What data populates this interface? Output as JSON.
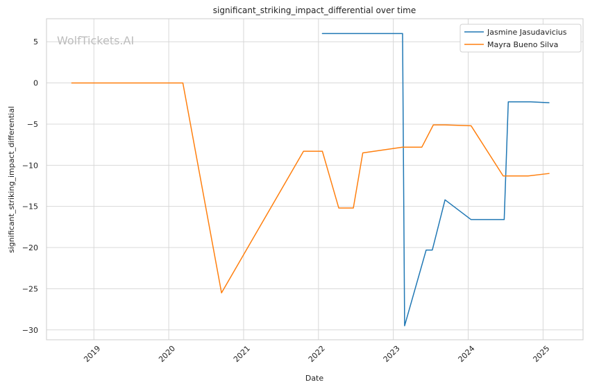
{
  "watermark": "WolfTickets.AI",
  "chart_data": {
    "type": "line",
    "title": "significant_striking_impact_differential over time",
    "xlabel": "Date",
    "ylabel": "significant_striking_impact_differential",
    "xlim": [
      "2018-05-15",
      "2025-07-15"
    ],
    "ylim": [
      -31.2,
      7.8
    ],
    "x_ticks": [
      {
        "label": "2019",
        "date": "2019-01-01"
      },
      {
        "label": "2020",
        "date": "2020-01-01"
      },
      {
        "label": "2021",
        "date": "2021-01-01"
      },
      {
        "label": "2022",
        "date": "2022-01-01"
      },
      {
        "label": "2023",
        "date": "2023-01-01"
      },
      {
        "label": "2024",
        "date": "2024-01-01"
      },
      {
        "label": "2025",
        "date": "2025-01-01"
      }
    ],
    "y_ticks": [
      5,
      0,
      -5,
      -10,
      -15,
      -20,
      -25,
      -30
    ],
    "grid": true,
    "legend_position": "top-right",
    "series": [
      {
        "name": "Jasmine Jasudavicius",
        "color": "#1f77b4",
        "points": [
          {
            "x": "2022-01-20",
            "y": 6.0
          },
          {
            "x": "2023-02-15",
            "y": 6.0
          },
          {
            "x": "2023-02-25",
            "y": -29.5
          },
          {
            "x": "2023-06-10",
            "y": -20.3
          },
          {
            "x": "2023-07-10",
            "y": -20.3
          },
          {
            "x": "2023-09-10",
            "y": -14.2
          },
          {
            "x": "2024-01-15",
            "y": -16.6
          },
          {
            "x": "2024-06-25",
            "y": -16.6
          },
          {
            "x": "2024-07-15",
            "y": -2.3
          },
          {
            "x": "2024-11-01",
            "y": -2.3
          },
          {
            "x": "2025-01-30",
            "y": -2.4
          }
        ]
      },
      {
        "name": "Mayra Bueno Silva",
        "color": "#ff7f0e",
        "points": [
          {
            "x": "2018-09-15",
            "y": 0.0
          },
          {
            "x": "2020-03-10",
            "y": 0.0
          },
          {
            "x": "2020-09-15",
            "y": -25.5
          },
          {
            "x": "2021-10-20",
            "y": -8.3
          },
          {
            "x": "2022-01-20",
            "y": -8.3
          },
          {
            "x": "2022-04-10",
            "y": -15.2
          },
          {
            "x": "2022-06-20",
            "y": -15.2
          },
          {
            "x": "2022-08-05",
            "y": -8.5
          },
          {
            "x": "2023-02-15",
            "y": -7.8
          },
          {
            "x": "2023-05-20",
            "y": -7.8
          },
          {
            "x": "2023-07-15",
            "y": -5.1
          },
          {
            "x": "2023-09-10",
            "y": -5.1
          },
          {
            "x": "2024-01-15",
            "y": -5.2
          },
          {
            "x": "2024-06-20",
            "y": -11.3
          },
          {
            "x": "2024-10-20",
            "y": -11.3
          },
          {
            "x": "2025-01-30",
            "y": -11.0
          }
        ]
      }
    ]
  }
}
